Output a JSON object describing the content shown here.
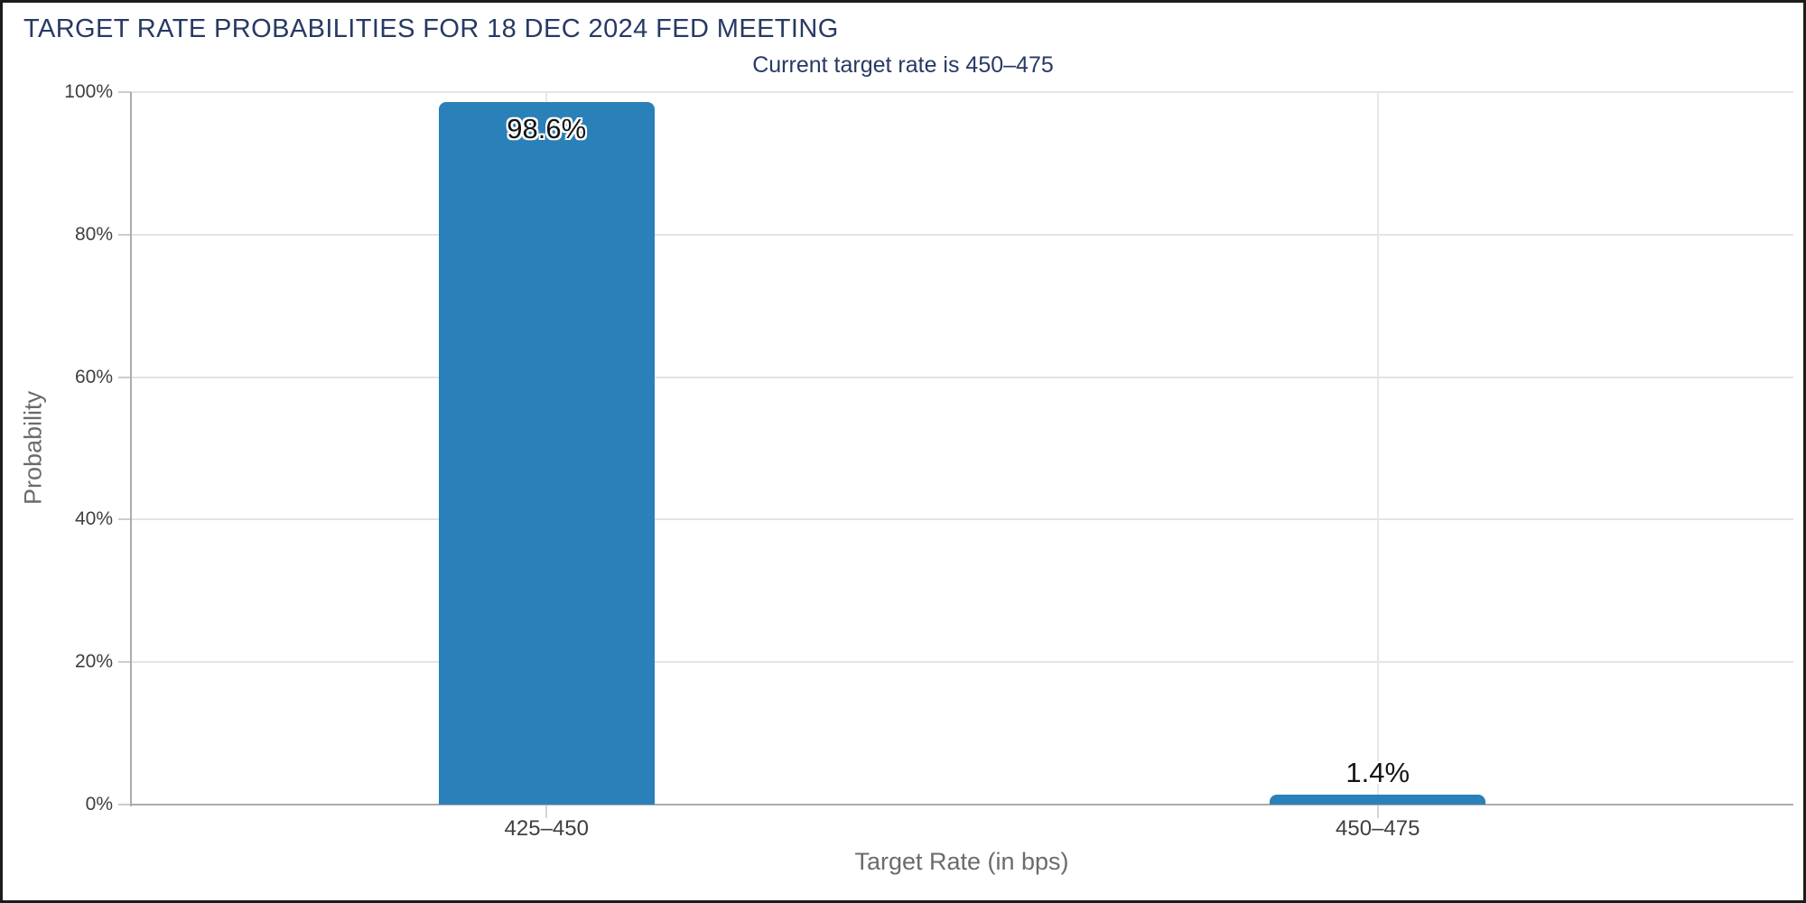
{
  "chart_data": {
    "type": "bar",
    "title": "TARGET RATE PROBABILITIES FOR 18 DEC 2024 FED MEETING",
    "subtitle": "Current target rate is 450–475",
    "categories": [
      "425–450",
      "450–475"
    ],
    "values": [
      98.6,
      1.4
    ],
    "value_labels": [
      "98.6%",
      "1.4%"
    ],
    "xlabel": "Target Rate (in bps)",
    "ylabel": "Probability",
    "ylim": [
      0,
      100
    ],
    "ytick_values": [
      0,
      20,
      40,
      60,
      80,
      100
    ],
    "ytick_labels": [
      "0%",
      "20%",
      "40%",
      "60%",
      "80%",
      "100%"
    ],
    "grid": true,
    "legend_position": "none",
    "bar_color": "#2A80B9"
  },
  "colors": {
    "title_text": "#273A64",
    "bar": "#2A80B9",
    "axis_title_text": "#6B6B6B",
    "tick_label_text": "#3F3F3F",
    "gridline": "#E4E4E4",
    "axis_line": "#ACACAC",
    "frame_border": "#1C1C1C"
  }
}
